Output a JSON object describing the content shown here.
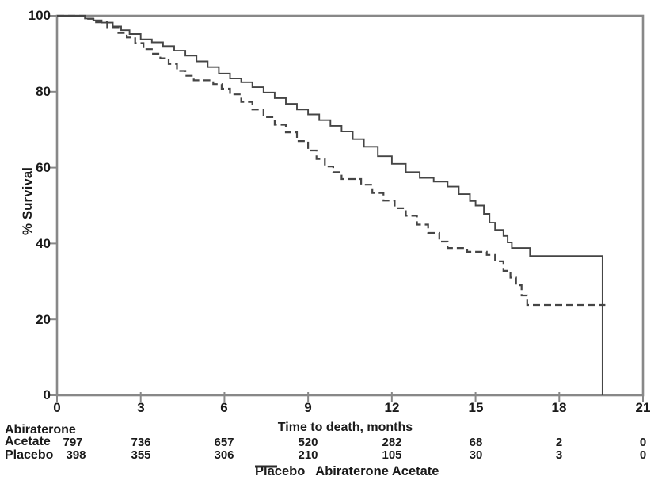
{
  "colors": {
    "curve": "#454545",
    "axis": "#888888",
    "text": "#1a1a1a"
  },
  "axis": {
    "x_tick_labels": [
      "0",
      "3",
      "6",
      "9",
      "12",
      "15",
      "18",
      "21"
    ],
    "y_tick_labels": [
      "100",
      "80",
      "60",
      "40",
      "20",
      "0"
    ]
  },
  "at_risk": {
    "group1_line1": "Abiraterone",
    "group1_line2": "Acetate",
    "group1_counts": [
      "797",
      "736",
      "657",
      "520",
      "282",
      "68",
      "2",
      "0"
    ],
    "group2_label": "Placebo",
    "group2_counts": [
      "398",
      "355",
      "306",
      "210",
      "105",
      "30",
      "3",
      "0"
    ]
  },
  "chart_data": {
    "type": "line",
    "subtype": "kaplan-meier-step",
    "title": "",
    "xlabel": "Time to death, months",
    "ylabel": "% Survival",
    "xlim": [
      0,
      21
    ],
    "ylim": [
      0,
      100
    ],
    "x_ticks": [
      0,
      3,
      6,
      9,
      12,
      15,
      18,
      21
    ],
    "y_ticks": [
      100,
      80,
      60,
      40,
      20,
      0
    ],
    "grid": false,
    "legend": {
      "position": "bottom",
      "entries": [
        {
          "label": "Placebo",
          "style": "dashed"
        },
        {
          "label": "Abiraterone Acetate",
          "style": "solid"
        }
      ]
    },
    "series": [
      {
        "name": "Placebo",
        "style": "dashed",
        "points": [
          [
            0,
            100
          ],
          [
            0.5,
            100
          ],
          [
            1.0,
            99.2
          ],
          [
            1.4,
            98.3
          ],
          [
            1.8,
            97.0
          ],
          [
            2.2,
            95.5
          ],
          [
            2.5,
            94.3
          ],
          [
            2.8,
            92.8
          ],
          [
            3.1,
            91.2
          ],
          [
            3.4,
            90.0
          ],
          [
            3.7,
            88.8
          ],
          [
            4.0,
            87.3
          ],
          [
            4.3,
            85.5
          ],
          [
            4.6,
            84.2
          ],
          [
            4.9,
            83.0
          ],
          [
            5.6,
            82.0
          ],
          [
            5.9,
            80.8
          ],
          [
            6.2,
            79.3
          ],
          [
            6.6,
            77.3
          ],
          [
            7.0,
            75.3
          ],
          [
            7.4,
            73.3
          ],
          [
            7.8,
            71.3
          ],
          [
            8.2,
            69.3
          ],
          [
            8.6,
            67.0
          ],
          [
            9.0,
            64.5
          ],
          [
            9.3,
            62.3
          ],
          [
            9.6,
            60.3
          ],
          [
            9.9,
            58.8
          ],
          [
            10.2,
            57.0
          ],
          [
            10.9,
            55.5
          ],
          [
            11.3,
            53.3
          ],
          [
            11.7,
            51.3
          ],
          [
            12.1,
            49.3
          ],
          [
            12.5,
            47.3
          ],
          [
            12.9,
            45.0
          ],
          [
            13.3,
            42.8
          ],
          [
            13.7,
            40.5
          ],
          [
            14.0,
            38.8
          ],
          [
            14.7,
            37.8
          ],
          [
            15.4,
            37.0
          ],
          [
            15.7,
            35.3
          ],
          [
            16.0,
            32.8
          ],
          [
            16.25,
            31.0
          ],
          [
            16.45,
            29.0
          ],
          [
            16.65,
            26.3
          ],
          [
            16.85,
            23.8
          ],
          [
            19.65,
            23.8
          ]
        ]
      },
      {
        "name": "Abiraterone Acetate",
        "style": "solid",
        "points": [
          [
            0,
            100
          ],
          [
            0.6,
            100
          ],
          [
            1.0,
            99.3
          ],
          [
            1.3,
            98.8
          ],
          [
            1.6,
            98.2
          ],
          [
            2.0,
            97.2
          ],
          [
            2.3,
            96.2
          ],
          [
            2.6,
            95.2
          ],
          [
            3.0,
            93.8
          ],
          [
            3.4,
            93.0
          ],
          [
            3.8,
            92.0
          ],
          [
            4.2,
            90.8
          ],
          [
            4.6,
            89.5
          ],
          [
            5.0,
            88.0
          ],
          [
            5.4,
            86.5
          ],
          [
            5.8,
            84.8
          ],
          [
            6.2,
            83.5
          ],
          [
            6.6,
            82.5
          ],
          [
            7.0,
            81.2
          ],
          [
            7.4,
            79.8
          ],
          [
            7.8,
            78.3
          ],
          [
            8.2,
            76.8
          ],
          [
            8.6,
            75.3
          ],
          [
            9.0,
            74.0
          ],
          [
            9.4,
            72.5
          ],
          [
            9.8,
            71.0
          ],
          [
            10.2,
            69.5
          ],
          [
            10.6,
            67.5
          ],
          [
            11.0,
            65.5
          ],
          [
            11.5,
            63.0
          ],
          [
            12.0,
            61.0
          ],
          [
            12.5,
            58.8
          ],
          [
            13.0,
            57.3
          ],
          [
            13.5,
            56.3
          ],
          [
            14.0,
            55.0
          ],
          [
            14.4,
            53.0
          ],
          [
            14.8,
            51.2
          ],
          [
            15.0,
            50.0
          ],
          [
            15.3,
            47.8
          ],
          [
            15.5,
            45.5
          ],
          [
            15.7,
            43.6
          ],
          [
            16.0,
            42.0
          ],
          [
            16.15,
            40.3
          ],
          [
            16.3,
            38.8
          ],
          [
            16.95,
            36.7
          ],
          [
            19.55,
            0
          ]
        ]
      }
    ]
  }
}
